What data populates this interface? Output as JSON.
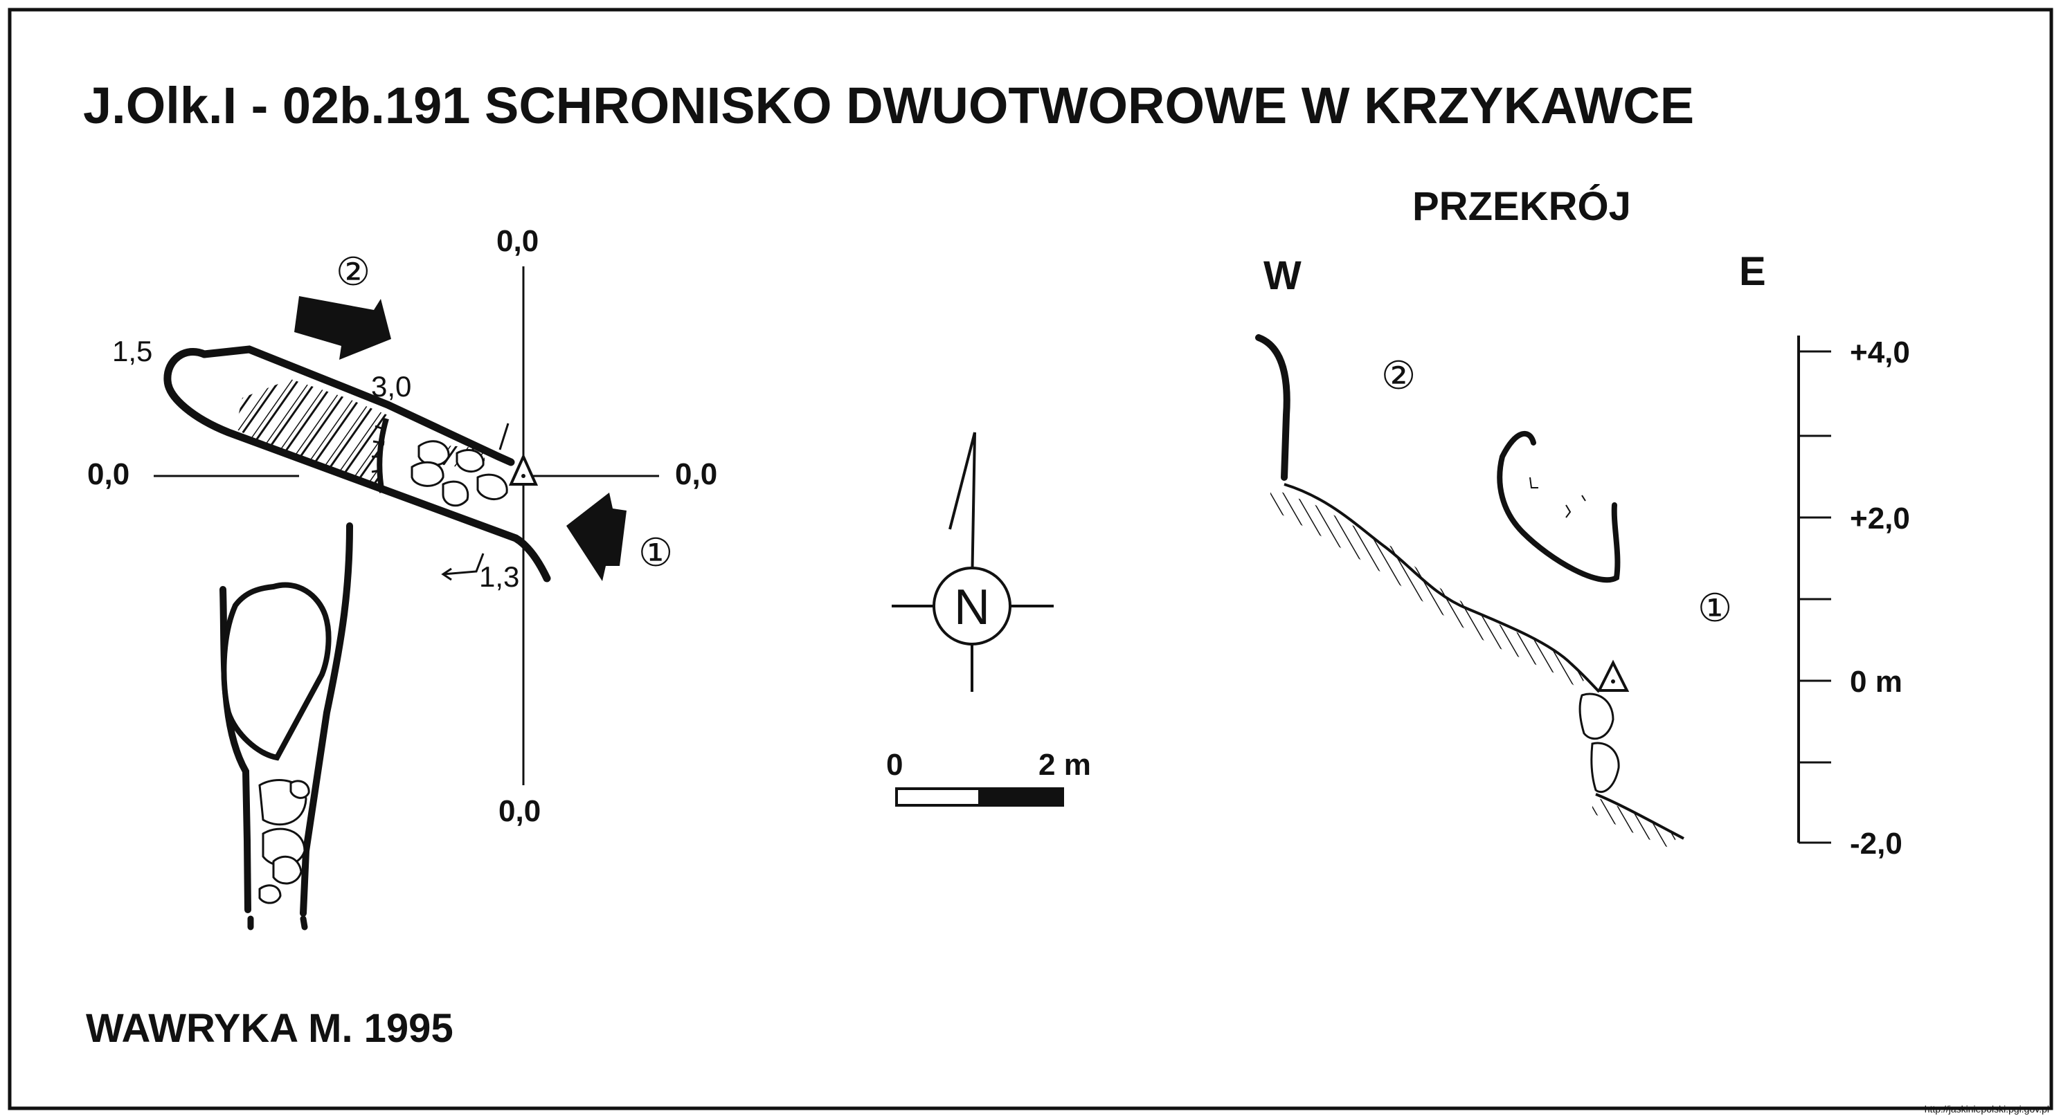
{
  "title": "J.Olk.I - 02b.191  SCHRONISKO DWUOTWOROWE W KRZYKAWCE",
  "author": "WAWRYKA M. 1995",
  "watermark": "http://jaskiniepolski.pgi.gov.pl",
  "plan": {
    "datum_labels": {
      "top": "0,0",
      "bottom": "0,0",
      "left": "0,0",
      "right": "0,0"
    },
    "depth_labels": {
      "west_end": "1,5",
      "middle": "3,0",
      "entrance": "1,3"
    },
    "entrance_markers": {
      "upper": "②",
      "lower": "①"
    }
  },
  "north_arrow": {
    "label": "N"
  },
  "scale_bar": {
    "start": "0",
    "end": "2 m"
  },
  "section": {
    "title": "PRZEKRÓJ",
    "west": "W",
    "east": "E",
    "entrance_markers": {
      "upper": "②",
      "lower": "①"
    },
    "elevation_scale": [
      "+4,0",
      "+2,0",
      "0 m",
      "-2,0"
    ]
  },
  "colors": {
    "ink": "#111111",
    "background": "#ffffff"
  }
}
